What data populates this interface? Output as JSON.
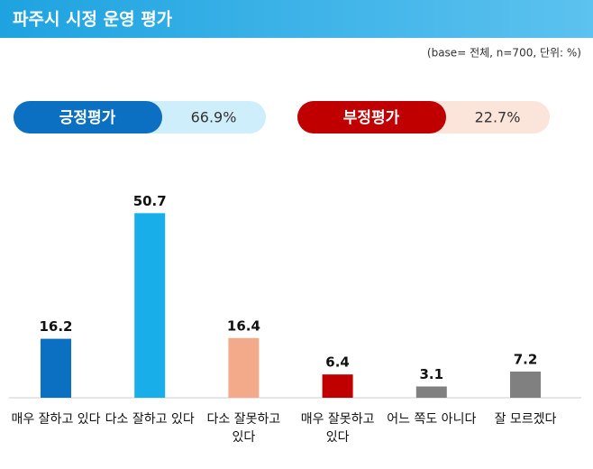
{
  "chart_data": {
    "type": "bar",
    "title": "파주시 시정 운영 평가",
    "note": "(base= 전체, n=700, 단위: %)",
    "summary": [
      {
        "label": "긍정평가",
        "value": "66.9%",
        "color": "#0b6fc2",
        "background": "#cfeefb"
      },
      {
        "label": "부정평가",
        "value": "22.7%",
        "color": "#c00000",
        "background": "#fbe4da"
      }
    ],
    "categories": [
      "매우 잘하고 있다",
      "다소 잘하고 있다",
      "다소 잘못하고 있다",
      "매우 잘못하고 있다",
      "어느 쪽도 아니다",
      "잘 모르겠다"
    ],
    "values": [
      16.2,
      50.7,
      16.4,
      6.4,
      3.1,
      7.2
    ],
    "colors": [
      "#0b6fc2",
      "#17aeea",
      "#f3aa8b",
      "#c00000",
      "#808080",
      "#808080"
    ],
    "ylim": [
      0,
      55
    ]
  }
}
